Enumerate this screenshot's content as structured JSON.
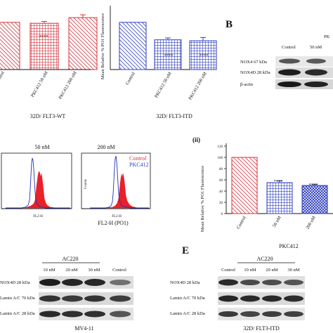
{
  "panels": {
    "top_left": {
      "group_label": "32D/ FLT3-WT",
      "categories": [
        "ontrol",
        "PKC412 50 nM",
        "PKC412 200 nM"
      ],
      "significance": [
        "",
        "****",
        ""
      ]
    },
    "top_middle": {
      "ylabel": "Mean Relative % PO1 Fluorescence",
      "group_label": "32D/ FLT3-ITD",
      "categories": [
        "Control",
        "PKC412 50 nM",
        "PKC412 200 nM"
      ],
      "significance": [
        "",
        "****",
        "****"
      ]
    },
    "B": {
      "letter": "B",
      "column_headers": [
        "Control",
        "PK",
        "50 nM"
      ],
      "row_labels": [
        "NOX4 67 kDa",
        "NOX4D 28 kDa",
        "β-actin"
      ]
    },
    "histograms": {
      "panels": [
        {
          "title": "50 nM",
          "xlabel": "FL2-H",
          "ylabel": ""
        },
        {
          "title": "200 nM",
          "xlabel": "FL2-H",
          "ylabel": "Counts"
        }
      ],
      "legend": [
        "Control",
        "PKC412"
      ],
      "xlabel": "FL2-H (PO1)"
    },
    "ii": {
      "label": "(ii)",
      "ylabel": "Mean Relative % PO1 Fluorescence",
      "xlabel": "PKC412",
      "categories": [
        "Control",
        "50 nM",
        "200 nM"
      ],
      "significance": [
        "",
        "****",
        "****"
      ]
    },
    "D_blot": {
      "header": "AC220",
      "column_headers": [
        "10 nM",
        "20 nM",
        "30 nM",
        "Control"
      ],
      "row_labels": [
        "NOX4D 28 kDa",
        "Lamin A/C 70 kDa",
        "Lamin A/C 28 kDa"
      ],
      "cell_line": "MV4-11"
    },
    "E": {
      "letter": "E",
      "header": "AC220",
      "column_headers": [
        "Control",
        "10 nM",
        "20 nM",
        "30 nM"
      ],
      "row_labels": [
        "NOX4D 28 kDa",
        "Lamin A/C 70 kDa",
        "Lamin A/C 28 kDa"
      ],
      "cell_line": "32D/ FLT3-ITD"
    }
  },
  "chart_data": [
    {
      "type": "bar",
      "categories": [
        "ontrol",
        "PKC412 50 nM",
        "PKC412 200 nM"
      ],
      "values": [
        100,
        98,
        110
      ],
      "errors": [
        0,
        4,
        6
      ],
      "ylim": [
        0,
        125
      ],
      "colors": [
        "#d9313b",
        "#d9313b",
        "#d9313b"
      ]
    },
    {
      "type": "bar",
      "categories": [
        "Control",
        "PKC412 50 nM",
        "PKC412 200 nM"
      ],
      "values": [
        100,
        63,
        61
      ],
      "errors": [
        0,
        4,
        7
      ],
      "ylim": [
        0,
        125
      ],
      "colors": [
        "#2f3fc0",
        "#2f3fc0",
        "#2f3fc0"
      ]
    },
    {
      "type": "bar",
      "categories": [
        "Control",
        "50 nM",
        "200 nM"
      ],
      "values": [
        100,
        55,
        50
      ],
      "errors": [
        0,
        3,
        2
      ],
      "ylim": [
        0,
        125
      ],
      "yticks": [
        0,
        20,
        40,
        60,
        80,
        100,
        120
      ],
      "colors": [
        "#d9313b",
        "#2f3fc0",
        "#2f3fc0"
      ]
    }
  ]
}
